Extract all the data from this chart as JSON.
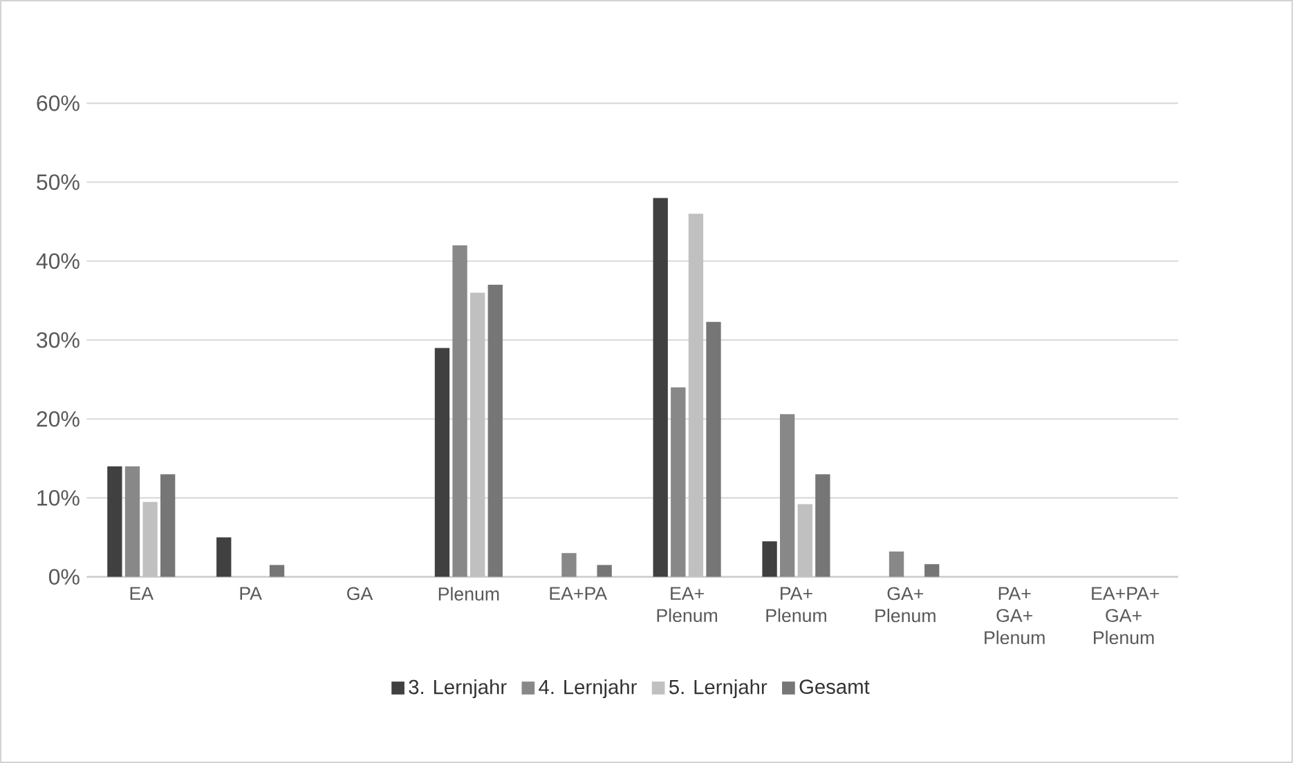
{
  "chart_data": {
    "type": "bar",
    "categories": [
      "EA",
      "PA",
      "GA",
      "Plenum",
      "EA+PA",
      "EA+ Plenum",
      "PA+ Plenum",
      "GA+ Plenum",
      "PA+ GA+ Plenum",
      "EA+PA+ GA+ Plenum"
    ],
    "series": [
      {
        "name": "3. Lernjahr",
        "color": "#404040",
        "values": [
          14,
          5,
          0,
          29,
          0,
          48,
          4.5,
          0,
          0,
          0
        ]
      },
      {
        "name": "4. Lernjahr",
        "color": "#888888",
        "values": [
          14,
          0,
          0,
          42,
          3,
          24,
          20.6,
          3.2,
          0,
          0
        ]
      },
      {
        "name": "5. Lernjahr",
        "color": "#c0c0c0",
        "values": [
          9.5,
          0,
          0,
          36,
          0,
          46,
          9.2,
          0,
          0,
          0
        ]
      },
      {
        "name": "Gesamt",
        "color": "#767676",
        "values": [
          13,
          1.5,
          0,
          37,
          1.5,
          32.3,
          13,
          1.6,
          0,
          0
        ]
      }
    ],
    "ylim": [
      0,
      60
    ],
    "yticks": [
      {
        "value": 0,
        "label": "0%"
      },
      {
        "value": 10,
        "label": "10%"
      },
      {
        "value": 20,
        "label": "20%"
      },
      {
        "value": 30,
        "label": "30%"
      },
      {
        "value": 40,
        "label": "40%"
      },
      {
        "value": 50,
        "label": "50%"
      },
      {
        "value": 60,
        "label": "60%"
      }
    ],
    "grid": "y",
    "legend": "bottom"
  }
}
